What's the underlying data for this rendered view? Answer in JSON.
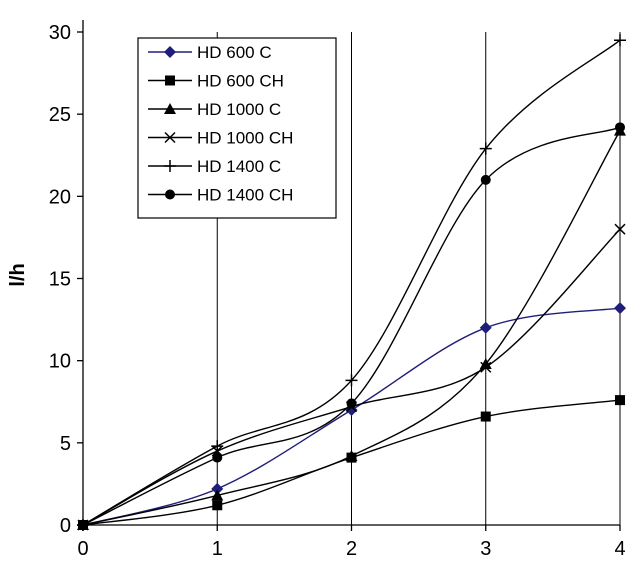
{
  "chart_data": {
    "type": "line",
    "title": "",
    "xlabel": "",
    "ylabel": "l/h",
    "xlim": [
      0,
      4
    ],
    "ylim": [
      0,
      30
    ],
    "x_ticks": [
      "0",
      "1",
      "2",
      "3",
      "4"
    ],
    "y_ticks": [
      "0",
      "5",
      "10",
      "15",
      "20",
      "25",
      "30"
    ],
    "grid": "vertical",
    "legend_position": "top-left",
    "x": [
      0,
      1,
      2,
      3,
      4
    ],
    "series": [
      {
        "name": "HD 600 C",
        "marker": "diamond",
        "color": "#1f1f7a",
        "values": [
          0,
          2.2,
          7.0,
          12.0,
          13.2
        ]
      },
      {
        "name": "HD 600 CH",
        "marker": "square",
        "color": "#000000",
        "values": [
          0,
          1.2,
          4.1,
          6.6,
          7.6
        ]
      },
      {
        "name": "HD 1000 C",
        "marker": "triangle",
        "color": "#000000",
        "values": [
          0,
          1.8,
          4.2,
          9.8,
          24.0
        ]
      },
      {
        "name": "HD 1000 CH",
        "marker": "x",
        "color": "#000000",
        "values": [
          0,
          4.5,
          7.2,
          9.6,
          18.0
        ]
      },
      {
        "name": "HD 1400 C",
        "marker": "plus",
        "color": "#000000",
        "values": [
          0,
          4.8,
          8.8,
          22.9,
          29.5
        ]
      },
      {
        "name": "HD 1400 CH",
        "marker": "circle",
        "color": "#000000",
        "values": [
          0,
          4.1,
          7.4,
          21.0,
          24.2
        ]
      }
    ]
  }
}
